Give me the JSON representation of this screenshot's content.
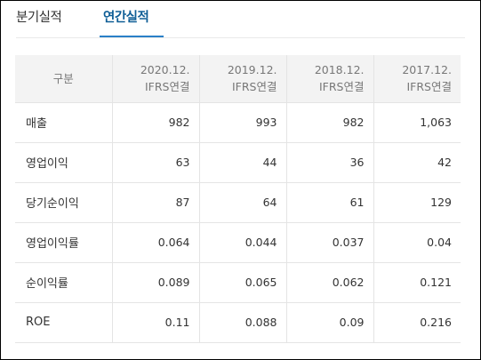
{
  "tabs": [
    {
      "label": "분기실적",
      "active": false
    },
    {
      "label": "연간실적",
      "active": true
    }
  ],
  "colors": {
    "active_tab": "#0f5e96",
    "underline": "#2a80c8",
    "header_bg": "#f3f3f3"
  },
  "table": {
    "label_header": "구분",
    "columns": [
      {
        "period": "2020.12.",
        "standard": "IFRS연결"
      },
      {
        "period": "2019.12.",
        "standard": "IFRS연결"
      },
      {
        "period": "2018.12.",
        "standard": "IFRS연결"
      },
      {
        "period": "2017.12.",
        "standard": "IFRS연결"
      }
    ],
    "rows": [
      {
        "label": "매출",
        "values": [
          "982",
          "993",
          "982",
          "1,063"
        ]
      },
      {
        "label": "영업이익",
        "values": [
          "63",
          "44",
          "36",
          "42"
        ]
      },
      {
        "label": "당기순이익",
        "values": [
          "87",
          "64",
          "61",
          "129"
        ]
      },
      {
        "label": "영업이익률",
        "values": [
          "0.064",
          "0.044",
          "0.037",
          "0.04"
        ]
      },
      {
        "label": "순이익률",
        "values": [
          "0.089",
          "0.065",
          "0.062",
          "0.121"
        ]
      },
      {
        "label": "ROE",
        "values": [
          "0.11",
          "0.088",
          "0.09",
          "0.216"
        ]
      }
    ]
  }
}
